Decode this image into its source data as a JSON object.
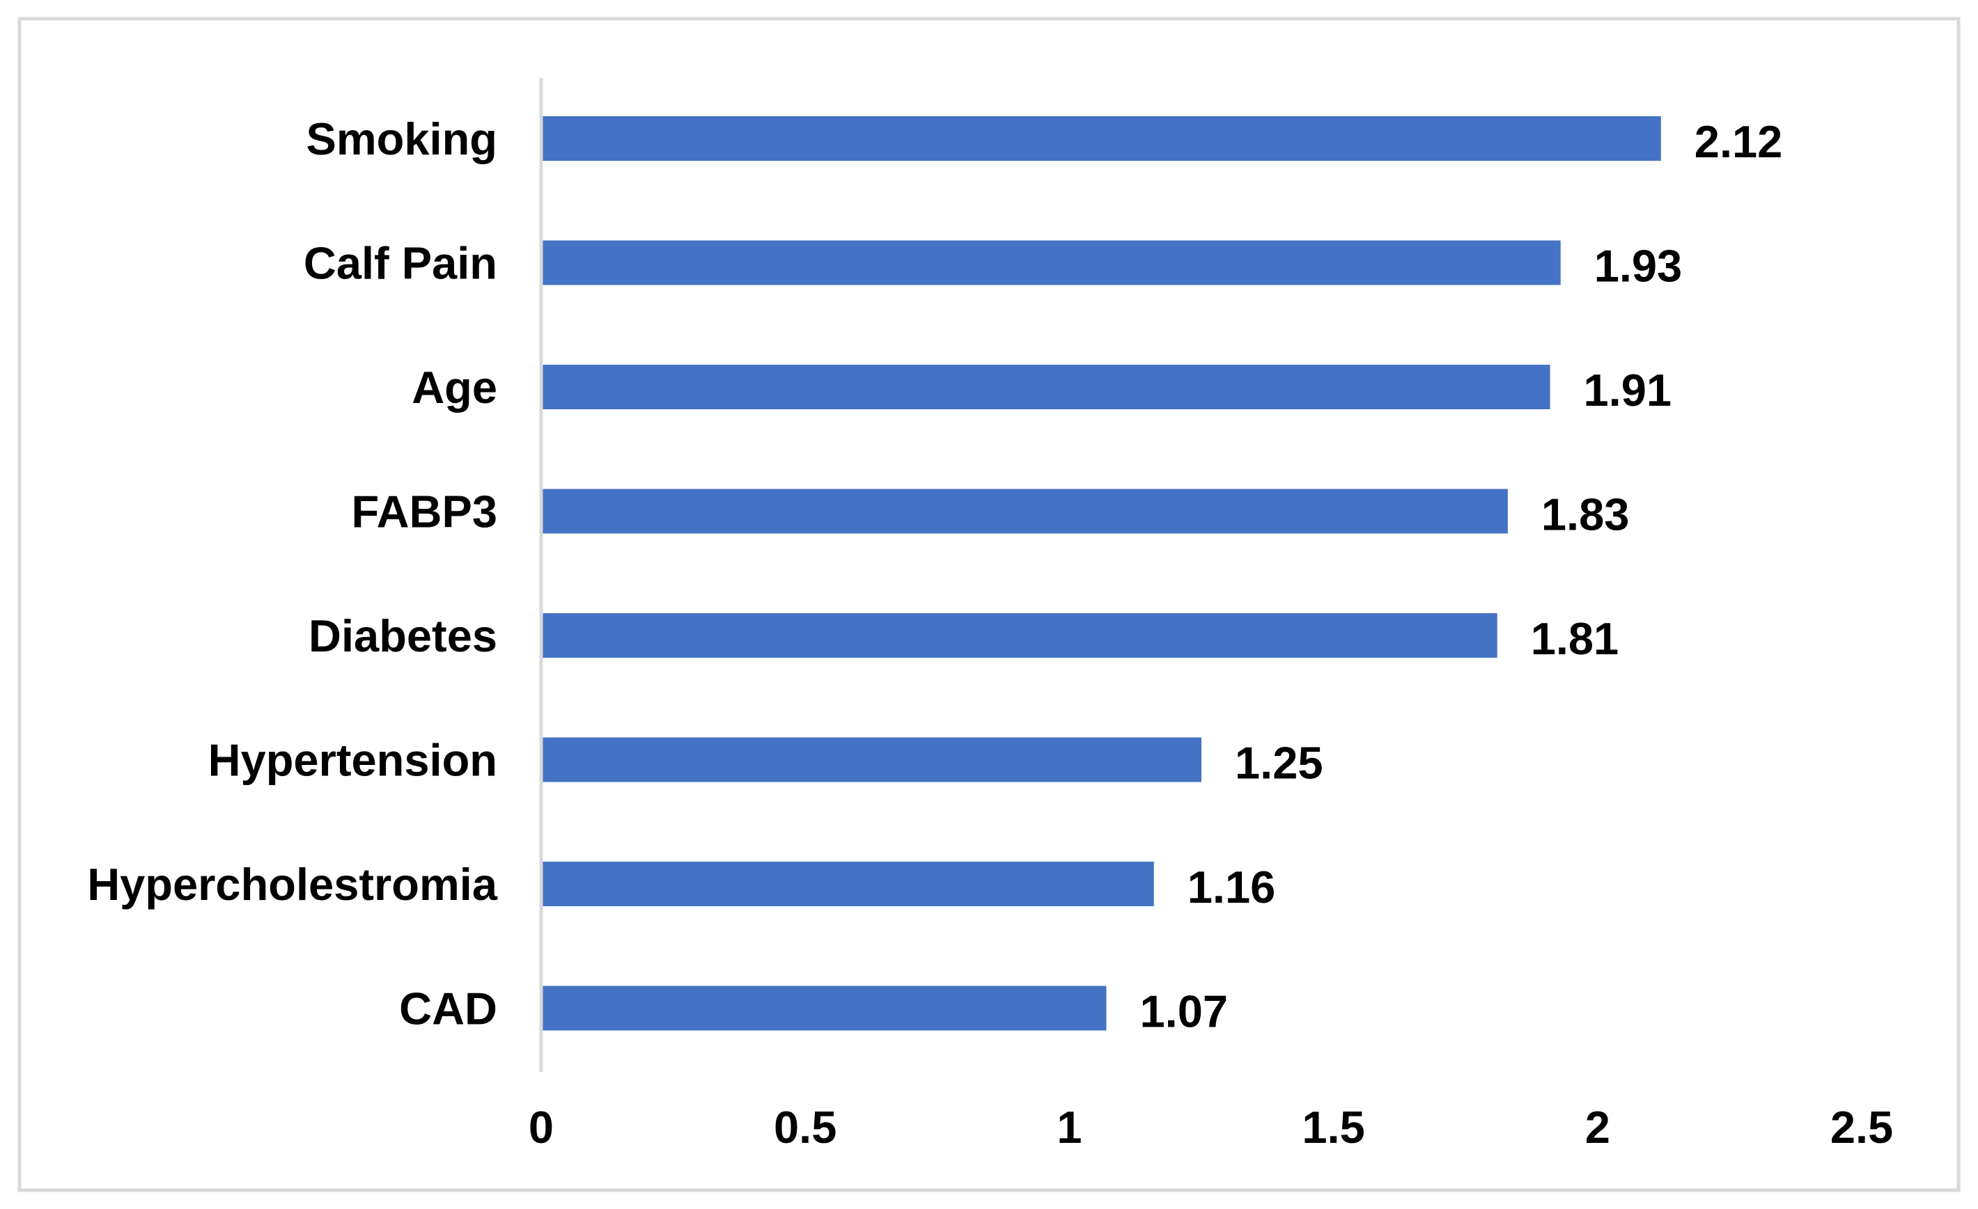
{
  "chart_data": {
    "type": "bar",
    "orientation": "horizontal",
    "categories": [
      "Smoking",
      "Calf Pain",
      "Age",
      "FABP3",
      "Diabetes",
      "Hypertension",
      "Hypercholestromia",
      "CAD"
    ],
    "values": [
      2.12,
      1.93,
      1.91,
      1.83,
      1.81,
      1.25,
      1.16,
      1.07
    ],
    "value_labels": [
      "2.12",
      "1.93",
      "1.91",
      "1.83",
      "1.81",
      "1.25",
      "1.16",
      "1.07"
    ],
    "x_ticks": [
      "0",
      "0.5",
      "1",
      "1.5",
      "2",
      "2.5"
    ],
    "xlim": [
      0,
      2.5
    ],
    "title": "",
    "xlabel": "",
    "ylabel": "",
    "grid": false,
    "legend": "none",
    "bar_color": "#4472C4",
    "axis_color": "#D9D9D9",
    "frame_color": "#D9D9D9"
  }
}
